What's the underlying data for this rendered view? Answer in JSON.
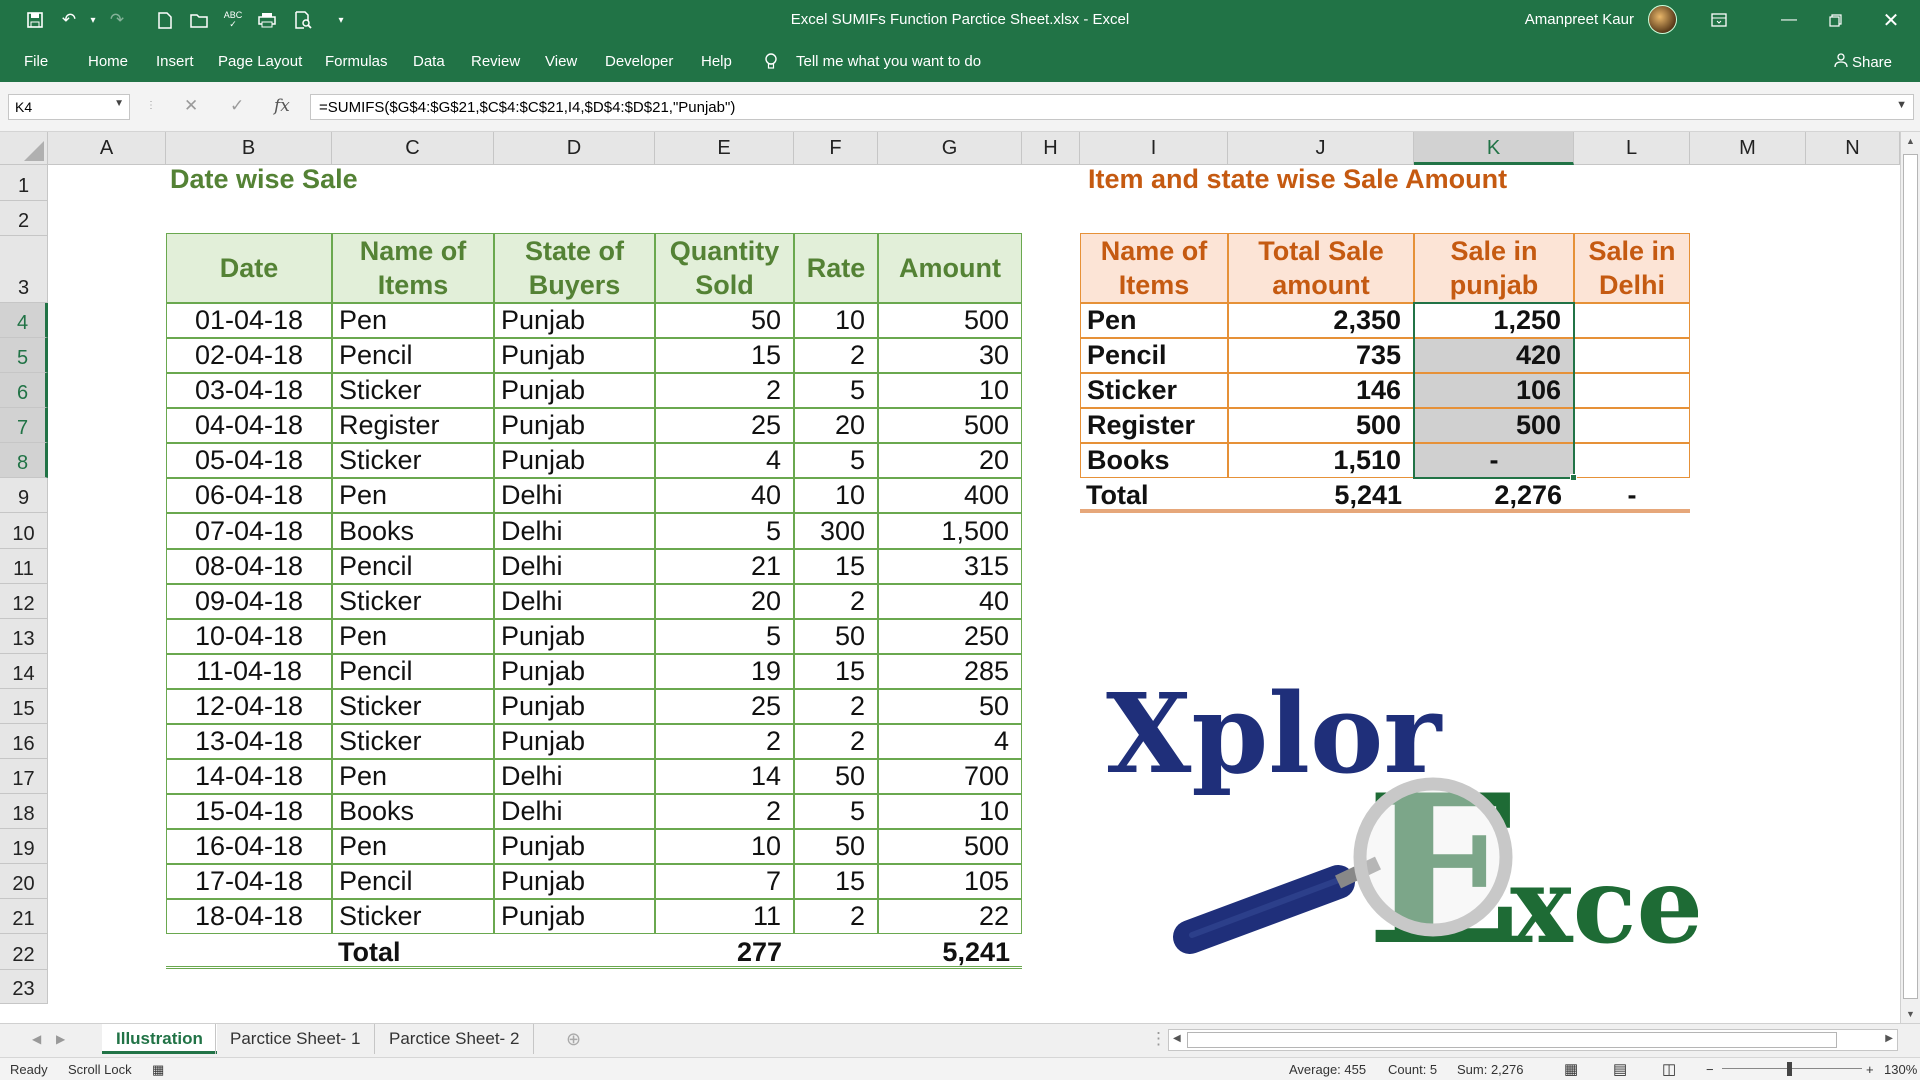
{
  "window": {
    "title": "Excel SUMIFs Function Parctice Sheet.xlsx  -  Excel",
    "user": "Amanpreet Kaur"
  },
  "ribbon": {
    "tabs": [
      "File",
      "Home",
      "Insert",
      "Page Layout",
      "Formulas",
      "Data",
      "Review",
      "View",
      "Developer",
      "Help"
    ],
    "tell_me": "Tell me what you want to do",
    "share": "Share"
  },
  "formula_bar": {
    "name_box": "K4",
    "formula": "=SUMIFS($G$4:$G$21,$C$4:$C$21,I4,$D$4:$D$21,\"Punjab\")"
  },
  "columns": [
    "A",
    "B",
    "C",
    "D",
    "E",
    "F",
    "G",
    "H",
    "I",
    "J",
    "K",
    "L",
    "M",
    "N"
  ],
  "rows": [
    "1",
    "2",
    "3",
    "4",
    "5",
    "6",
    "7",
    "8",
    "9",
    "10",
    "11",
    "12",
    "13",
    "14",
    "15",
    "16",
    "17",
    "18",
    "19",
    "20",
    "21",
    "22",
    "23"
  ],
  "left_table": {
    "title": "Date wise Sale",
    "headers": [
      "Date",
      "Name of Items",
      "State of Buyers",
      "Quantity Sold",
      "Rate",
      "Amount"
    ],
    "rows": [
      [
        "01-04-18",
        "Pen",
        "Punjab",
        "50",
        "10",
        "500"
      ],
      [
        "02-04-18",
        "Pencil",
        "Punjab",
        "15",
        "2",
        "30"
      ],
      [
        "03-04-18",
        "Sticker",
        "Punjab",
        "2",
        "5",
        "10"
      ],
      [
        "04-04-18",
        "Register",
        "Punjab",
        "25",
        "20",
        "500"
      ],
      [
        "05-04-18",
        "Sticker",
        "Punjab",
        "4",
        "5",
        "20"
      ],
      [
        "06-04-18",
        "Pen",
        "Delhi",
        "40",
        "10",
        "400"
      ],
      [
        "07-04-18",
        "Books",
        "Delhi",
        "5",
        "300",
        "1,500"
      ],
      [
        "08-04-18",
        "Pencil",
        "Delhi",
        "21",
        "15",
        "315"
      ],
      [
        "09-04-18",
        "Sticker",
        "Delhi",
        "20",
        "2",
        "40"
      ],
      [
        "10-04-18",
        "Pen",
        "Punjab",
        "5",
        "50",
        "250"
      ],
      [
        "11-04-18",
        "Pencil",
        "Punjab",
        "19",
        "15",
        "285"
      ],
      [
        "12-04-18",
        "Sticker",
        "Punjab",
        "25",
        "2",
        "50"
      ],
      [
        "13-04-18",
        "Sticker",
        "Punjab",
        "2",
        "2",
        "4"
      ],
      [
        "14-04-18",
        "Pen",
        "Delhi",
        "14",
        "50",
        "700"
      ],
      [
        "15-04-18",
        "Books",
        "Delhi",
        "2",
        "5",
        "10"
      ],
      [
        "16-04-18",
        "Pen",
        "Punjab",
        "10",
        "50",
        "500"
      ],
      [
        "17-04-18",
        "Pencil",
        "Punjab",
        "7",
        "15",
        "105"
      ],
      [
        "18-04-18",
        "Sticker",
        "Punjab",
        "11",
        "2",
        "22"
      ]
    ],
    "total_label": "Total",
    "total_qty": "277",
    "total_amount": "5,241"
  },
  "right_table": {
    "title": "Item and state wise Sale Amount",
    "headers": [
      "Name of Items",
      "Total Sale amount",
      "Sale in punjab",
      "Sale in Delhi"
    ],
    "rows": [
      [
        "Pen",
        "2,350",
        "1,250",
        ""
      ],
      [
        "Pencil",
        "735",
        "420",
        ""
      ],
      [
        "Sticker",
        "146",
        "106",
        ""
      ],
      [
        "Register",
        "500",
        "500",
        ""
      ],
      [
        "Books",
        "1,510",
        "-",
        ""
      ]
    ],
    "total_label": "Total",
    "total_sale": "5,241",
    "total_punjab": "2,276",
    "total_delhi": "-"
  },
  "logo": {
    "text_part1": "Xplor",
    "text_part2": "E",
    "text_part3": "xcel"
  },
  "sheet_tabs": [
    "Illustration",
    "Parctice Sheet- 1",
    "Parctice Sheet- 2"
  ],
  "status_bar": {
    "ready": "Ready",
    "scroll_lock": "Scroll Lock",
    "average": "Average:  455",
    "count": "Count: 5",
    "sum": "Sum:  2,276",
    "zoom": "130%"
  },
  "colors": {
    "excel_green": "#217346",
    "green_header": "#e2efd9",
    "orange_header": "#fce4d6",
    "logo_blue": "#1f2f7a",
    "logo_green": "#1e6b35"
  }
}
